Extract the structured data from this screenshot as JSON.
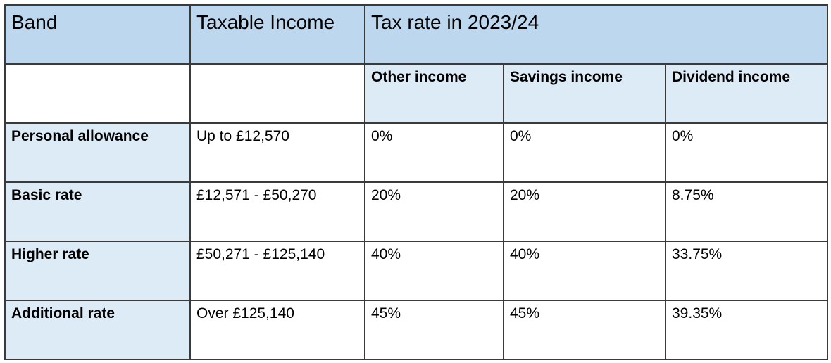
{
  "table": {
    "header": {
      "band": "Band",
      "taxable_income": "Taxable Income",
      "tax_rate": "Tax rate in 2023/24"
    },
    "subheader": {
      "other_income": "Other income",
      "savings_income": "Savings income",
      "dividend_income": "Dividend income"
    },
    "rows": [
      {
        "band": "Personal allowance",
        "taxable_income": "Up to £12,570",
        "other": "0%",
        "savings": "0%",
        "dividend": "0%"
      },
      {
        "band": "Basic rate",
        "taxable_income": "£12,571 - £50,270",
        "other": "20%",
        "savings": "20%",
        "dividend": "8.75%"
      },
      {
        "band": "Higher rate",
        "taxable_income": "£50,271 - £125,140",
        "other": "40%",
        "savings": "40%",
        "dividend": "33.75%"
      },
      {
        "band": "Additional rate",
        "taxable_income": "Over £125,140",
        "other": "45%",
        "savings": "45%",
        "dividend": "39.35%"
      }
    ]
  },
  "colors": {
    "header_fill": "#bdd7ee",
    "light_fill": "#ddebf7",
    "border": "#3a3a3a"
  }
}
